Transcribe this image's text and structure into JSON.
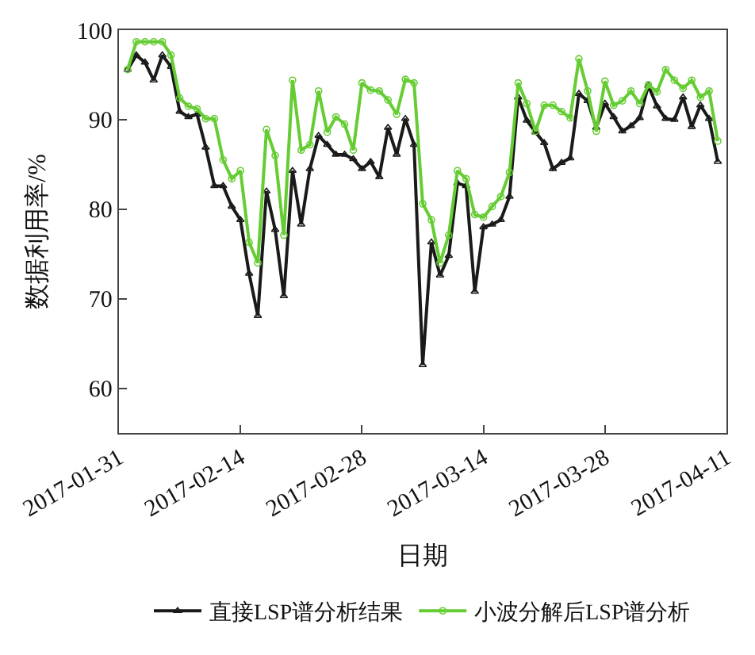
{
  "chart_data": {
    "type": "line",
    "xlabel": "日期",
    "ylabel": "数据利用率/%",
    "x": [
      "2017-02-01",
      "2017-02-02",
      "2017-02-03",
      "2017-02-04",
      "2017-02-05",
      "2017-02-06",
      "2017-02-07",
      "2017-02-08",
      "2017-02-09",
      "2017-02-10",
      "2017-02-11",
      "2017-02-12",
      "2017-02-13",
      "2017-02-14",
      "2017-02-15",
      "2017-02-16",
      "2017-02-17",
      "2017-02-18",
      "2017-02-19",
      "2017-02-20",
      "2017-02-21",
      "2017-02-22",
      "2017-02-23",
      "2017-02-24",
      "2017-02-25",
      "2017-02-26",
      "2017-02-27",
      "2017-02-28",
      "2017-03-01",
      "2017-03-02",
      "2017-03-03",
      "2017-03-04",
      "2017-03-05",
      "2017-03-06",
      "2017-03-07",
      "2017-03-08",
      "2017-03-09",
      "2017-03-10",
      "2017-03-11",
      "2017-03-12",
      "2017-03-13",
      "2017-03-14",
      "2017-03-15",
      "2017-03-16",
      "2017-03-17",
      "2017-03-18",
      "2017-03-19",
      "2017-03-20",
      "2017-03-21",
      "2017-03-22",
      "2017-03-23",
      "2017-03-24",
      "2017-03-25",
      "2017-03-26",
      "2017-03-27",
      "2017-03-28",
      "2017-03-29",
      "2017-03-30",
      "2017-03-31",
      "2017-04-01",
      "2017-04-02",
      "2017-04-03",
      "2017-04-04",
      "2017-04-05",
      "2017-04-06",
      "2017-04-07",
      "2017-04-08",
      "2017-04-09",
      "2017-04-10"
    ],
    "series": [
      {
        "name": "直接LSP谱分析结果",
        "color": "#1a1a1a",
        "marker": "triangle",
        "values": [
          95.6,
          97.2,
          96.4,
          94.4,
          97.2,
          95.9,
          90.9,
          90.3,
          90.6,
          86.9,
          82.6,
          82.6,
          80.3,
          78.8,
          72.8,
          68.1,
          82.0,
          77.7,
          70.3,
          84.3,
          78.3,
          84.5,
          88.2,
          87.2,
          86.1,
          86.1,
          85.6,
          84.5,
          85.3,
          83.6,
          89.1,
          86.1,
          90.1,
          87.2,
          62.6,
          76.3,
          72.6,
          74.8,
          82.9,
          82.6,
          70.8,
          78.0,
          78.3,
          78.8,
          81.4,
          92.5,
          89.9,
          88.6,
          87.4,
          84.5,
          85.2,
          85.7,
          92.9,
          92.1,
          89.1,
          91.8,
          90.3,
          88.7,
          89.3,
          90.2,
          93.8,
          91.5,
          90.1,
          90.0,
          92.5,
          89.2,
          91.6,
          90.1,
          85.3
        ]
      },
      {
        "name": "小波分解后LSP谱分析",
        "color": "#66cc33",
        "marker": "circle",
        "values": [
          95.6,
          98.7,
          98.7,
          98.7,
          98.7,
          97.2,
          92.4,
          91.5,
          91.2,
          90.1,
          90.1,
          85.5,
          83.4,
          84.3,
          76.3,
          74.0,
          88.9,
          86.0,
          77.1,
          94.4,
          86.6,
          87.2,
          93.2,
          88.6,
          90.3,
          89.5,
          86.6,
          94.1,
          93.3,
          93.2,
          92.2,
          90.6,
          94.5,
          94.1,
          80.6,
          78.8,
          74.0,
          77.1,
          84.3,
          83.4,
          79.4,
          79.1,
          80.3,
          81.4,
          84.1,
          94.1,
          91.8,
          88.7,
          91.6,
          91.6,
          90.9,
          90.2,
          96.8,
          93.2,
          88.7,
          94.3,
          91.6,
          92.1,
          93.2,
          91.8,
          93.9,
          93.1,
          95.6,
          94.4,
          93.5,
          94.4,
          92.5,
          93.2,
          87.6
        ]
      }
    ],
    "xlim": [
      "2017-01-31",
      "2017-04-11"
    ],
    "xticks": [
      "2017-01-31",
      "2017-02-14",
      "2017-02-28",
      "2017-03-14",
      "2017-03-28",
      "2017-04-11"
    ],
    "ylim": [
      55,
      100
    ],
    "yticks": [
      60,
      70,
      80,
      90,
      100
    ],
    "legend": "bottom",
    "line_style": "solid"
  }
}
